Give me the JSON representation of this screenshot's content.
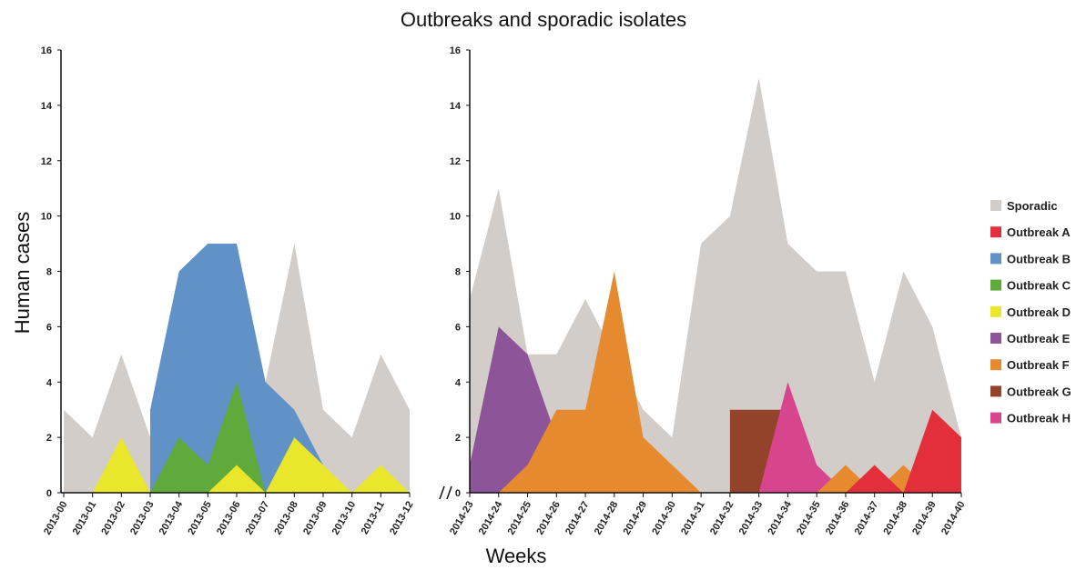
{
  "chart_data": {
    "type": "area",
    "title": "Outbreaks and sporadic isolates",
    "xlabel": "Weeks",
    "ylabel": "Human cases",
    "ylim": [
      0,
      16
    ],
    "yticks": [
      0,
      2,
      4,
      6,
      8,
      10,
      12,
      14,
      16
    ],
    "legend_position": "right",
    "panels": [
      {
        "categories": [
          "2013-00",
          "2013-01",
          "2013-02",
          "2013-03",
          "2013-04",
          "2013-05",
          "2013-06",
          "2013-07",
          "2013-08",
          "2013-09",
          "2013-10",
          "2013-11",
          "2013-12"
        ],
        "series": [
          {
            "name": "Sporadic",
            "color": "#d3cdc9",
            "values": [
              3,
              2,
              5,
              2,
              3,
              3,
              2,
              4,
              9,
              3,
              2,
              5,
              3
            ]
          },
          {
            "name": "Outbreak B",
            "color": "#6091c7",
            "values": [
              null,
              null,
              null,
              3,
              8,
              9,
              9,
              4,
              3,
              1,
              null,
              null,
              null
            ]
          },
          {
            "name": "Outbreak C",
            "color": "#5faa3b",
            "values": [
              null,
              null,
              null,
              0,
              2,
              1,
              4,
              0,
              null,
              null,
              null,
              null,
              null
            ]
          },
          {
            "name": "Outbreak D",
            "color": "#e9e62b",
            "values": [
              null,
              0,
              2,
              0,
              null,
              0,
              1,
              0,
              2,
              1,
              0,
              1,
              0
            ]
          }
        ]
      },
      {
        "categories": [
          "2014-23",
          "2014-24",
          "2014-25",
          "2014-26",
          "2014-27",
          "2014-28",
          "2014-29",
          "2014-30",
          "2014-31",
          "2014-32",
          "2014-33",
          "2014-34",
          "2014-35",
          "2014-36",
          "2014-37",
          "2014-38",
          "2014-39",
          "2014-40"
        ],
        "series": [
          {
            "name": "Sporadic",
            "color": "#d3cdc9",
            "values": [
              7,
              11,
              5,
              5,
              7,
              5,
              3,
              2,
              9,
              10,
              15,
              9,
              8,
              8,
              4,
              8,
              6,
              2
            ]
          },
          {
            "name": "Outbreak E",
            "color": "#8e5499",
            "values": [
              1,
              6,
              5,
              2,
              null,
              null,
              null,
              null,
              null,
              null,
              null,
              null,
              null,
              null,
              null,
              null,
              null,
              null
            ]
          },
          {
            "name": "Outbreak F",
            "color": "#e68a2f",
            "values": [
              null,
              0,
              1,
              3,
              3,
              8,
              2,
              1,
              0,
              null,
              null,
              null,
              null,
              null,
              null,
              null,
              null,
              null
            ]
          },
          {
            "name": "Outbreak G",
            "color": "#93432a",
            "values": [
              null,
              null,
              null,
              null,
              null,
              null,
              null,
              null,
              null,
              3,
              3,
              3,
              null,
              null,
              null,
              null,
              null,
              null
            ]
          },
          {
            "name": "Outbreak H",
            "color": "#d7458f",
            "values": [
              null,
              null,
              null,
              null,
              null,
              null,
              null,
              null,
              null,
              null,
              0,
              4,
              1,
              0,
              null,
              null,
              null,
              null
            ]
          },
          {
            "name": "Outbreak F",
            "color": "#e68a2f",
            "values": [
              null,
              null,
              null,
              null,
              null,
              null,
              null,
              null,
              null,
              null,
              null,
              null,
              0,
              1,
              0,
              1,
              0,
              null
            ]
          },
          {
            "name": "Outbreak A",
            "color": "#e32f3c",
            "values": [
              null,
              null,
              null,
              null,
              null,
              null,
              null,
              null,
              null,
              null,
              null,
              null,
              null,
              0,
              1,
              0,
              3,
              2
            ]
          }
        ]
      }
    ],
    "legend": [
      {
        "name": "Sporadic",
        "color": "#d3cdc9"
      },
      {
        "name": "Outbreak A",
        "color": "#e32f3c"
      },
      {
        "name": "Outbreak B",
        "color": "#6091c7"
      },
      {
        "name": "Outbreak C",
        "color": "#5faa3b"
      },
      {
        "name": "Outbreak D",
        "color": "#e9e62b"
      },
      {
        "name": "Outbreak E",
        "color": "#8e5499"
      },
      {
        "name": "Outbreak F",
        "color": "#e68a2f"
      },
      {
        "name": "Outbreak G",
        "color": "#93432a"
      },
      {
        "name": "Outbreak H",
        "color": "#d7458f"
      }
    ]
  }
}
